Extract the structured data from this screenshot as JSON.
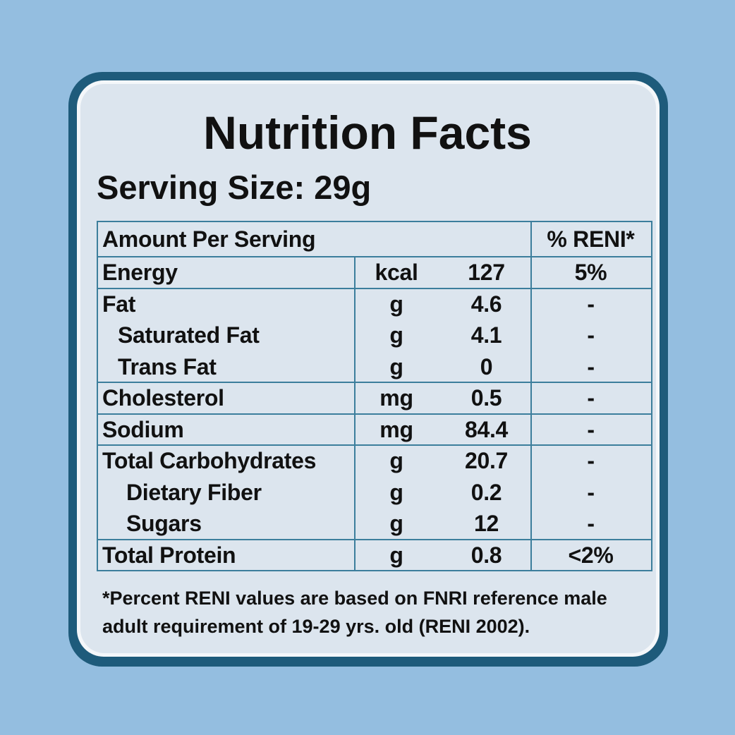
{
  "title": "Nutrition Facts",
  "serving_size": "Serving Size: 29g",
  "table": {
    "header": {
      "amount_per_serving": "Amount Per Serving",
      "percent_reni": "% RENI*"
    },
    "rows": [
      {
        "name": "Energy",
        "unit": "kcal",
        "amount": "127",
        "reni": "5%"
      },
      {
        "name": "Fat",
        "unit": "g",
        "amount": "4.6",
        "reni": "-",
        "sub": [
          {
            "name": "Saturated Fat",
            "unit": "g",
            "amount": "4.1",
            "reni": "-"
          },
          {
            "name": "Trans Fat",
            "unit": "g",
            "amount": "0",
            "reni": "-"
          }
        ]
      },
      {
        "name": "Cholesterol",
        "unit": "mg",
        "amount": "0.5",
        "reni": "-"
      },
      {
        "name": "Sodium",
        "unit": "mg",
        "amount": "84.4",
        "reni": "-"
      },
      {
        "name": "Total Carbohydrates",
        "unit": "g",
        "amount": "20.7",
        "reni": "-",
        "sub": [
          {
            "name": "Dietary Fiber",
            "unit": "g",
            "amount": "0.2",
            "reni": "-"
          },
          {
            "name": "Sugars",
            "unit": "g",
            "amount": "12",
            "reni": "-"
          }
        ]
      },
      {
        "name": "Total Protein",
        "unit": "g",
        "amount": "0.8",
        "reni": "<2%"
      }
    ]
  },
  "footnote": "*Percent RENI values are based on FNRI reference male adult requirement of 19-29 yrs. old (RENI 2002)."
}
